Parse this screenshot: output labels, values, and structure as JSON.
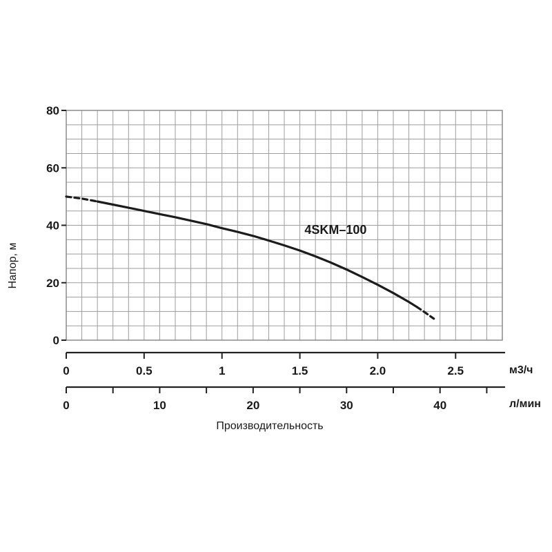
{
  "chart_data": {
    "type": "line",
    "title": "",
    "xlabel": "Производительность",
    "ylabel": "Напор, м",
    "x_axis": {
      "range": [
        0,
        2.8
      ],
      "grid_step": 0.1,
      "primary_scale": {
        "unit": "м3/ч",
        "tick_values": [
          0,
          0.5,
          1,
          1.5,
          2,
          2.5
        ],
        "tick_labels": [
          "0",
          "0.5",
          "1",
          "1.5",
          "2.0",
          "2.5"
        ]
      },
      "secondary_scale": {
        "unit": "л/мин",
        "labeled_tick_values": [
          0,
          10,
          20,
          30,
          40
        ],
        "tick_labels": [
          "0",
          "10",
          "20",
          "30",
          "40"
        ],
        "minor_tick_step": 5,
        "max_minor_tick": 45,
        "lmin_per_m3h": 16.6667
      }
    },
    "y_axis": {
      "range": [
        0,
        80
      ],
      "grid_step": 5,
      "tick_values": [
        0,
        20,
        40,
        60,
        80
      ],
      "tick_labels": [
        "0",
        "20",
        "40",
        "60",
        "80"
      ]
    },
    "grid": true,
    "legend": "none",
    "series": [
      {
        "name": "4SKM–100",
        "points": [
          [
            0,
            50
          ],
          [
            0.1,
            49.3
          ],
          [
            0.2,
            48.3
          ],
          [
            0.3,
            47.2
          ],
          [
            0.4,
            46.1
          ],
          [
            0.5,
            45.0
          ],
          [
            0.6,
            43.9
          ],
          [
            0.7,
            42.8
          ],
          [
            0.8,
            41.6
          ],
          [
            0.9,
            40.4
          ],
          [
            1.0,
            39.0
          ],
          [
            1.1,
            37.7
          ],
          [
            1.2,
            36.3
          ],
          [
            1.3,
            34.7
          ],
          [
            1.4,
            33.0
          ],
          [
            1.5,
            31.2
          ],
          [
            1.6,
            29.2
          ],
          [
            1.7,
            27.0
          ],
          [
            1.8,
            24.6
          ],
          [
            1.9,
            22.0
          ],
          [
            2.0,
            19.3
          ],
          [
            2.1,
            16.4
          ],
          [
            2.2,
            13.3
          ],
          [
            2.25,
            11.6
          ],
          [
            2.3,
            9.8
          ],
          [
            2.36,
            7.5
          ]
        ],
        "solid_range": [
          0.2,
          2.25
        ],
        "dashed_ends": true
      }
    ],
    "annotation": {
      "text": "4SKM–100",
      "x": 1.53,
      "y": 37.0
    }
  },
  "colors": {
    "background": "#ffffff",
    "grid": "#9d9d9d",
    "border": "#7a7a7a",
    "curve": "#1c1c1c",
    "axis": "#222222",
    "text": "#1a1a1a"
  }
}
